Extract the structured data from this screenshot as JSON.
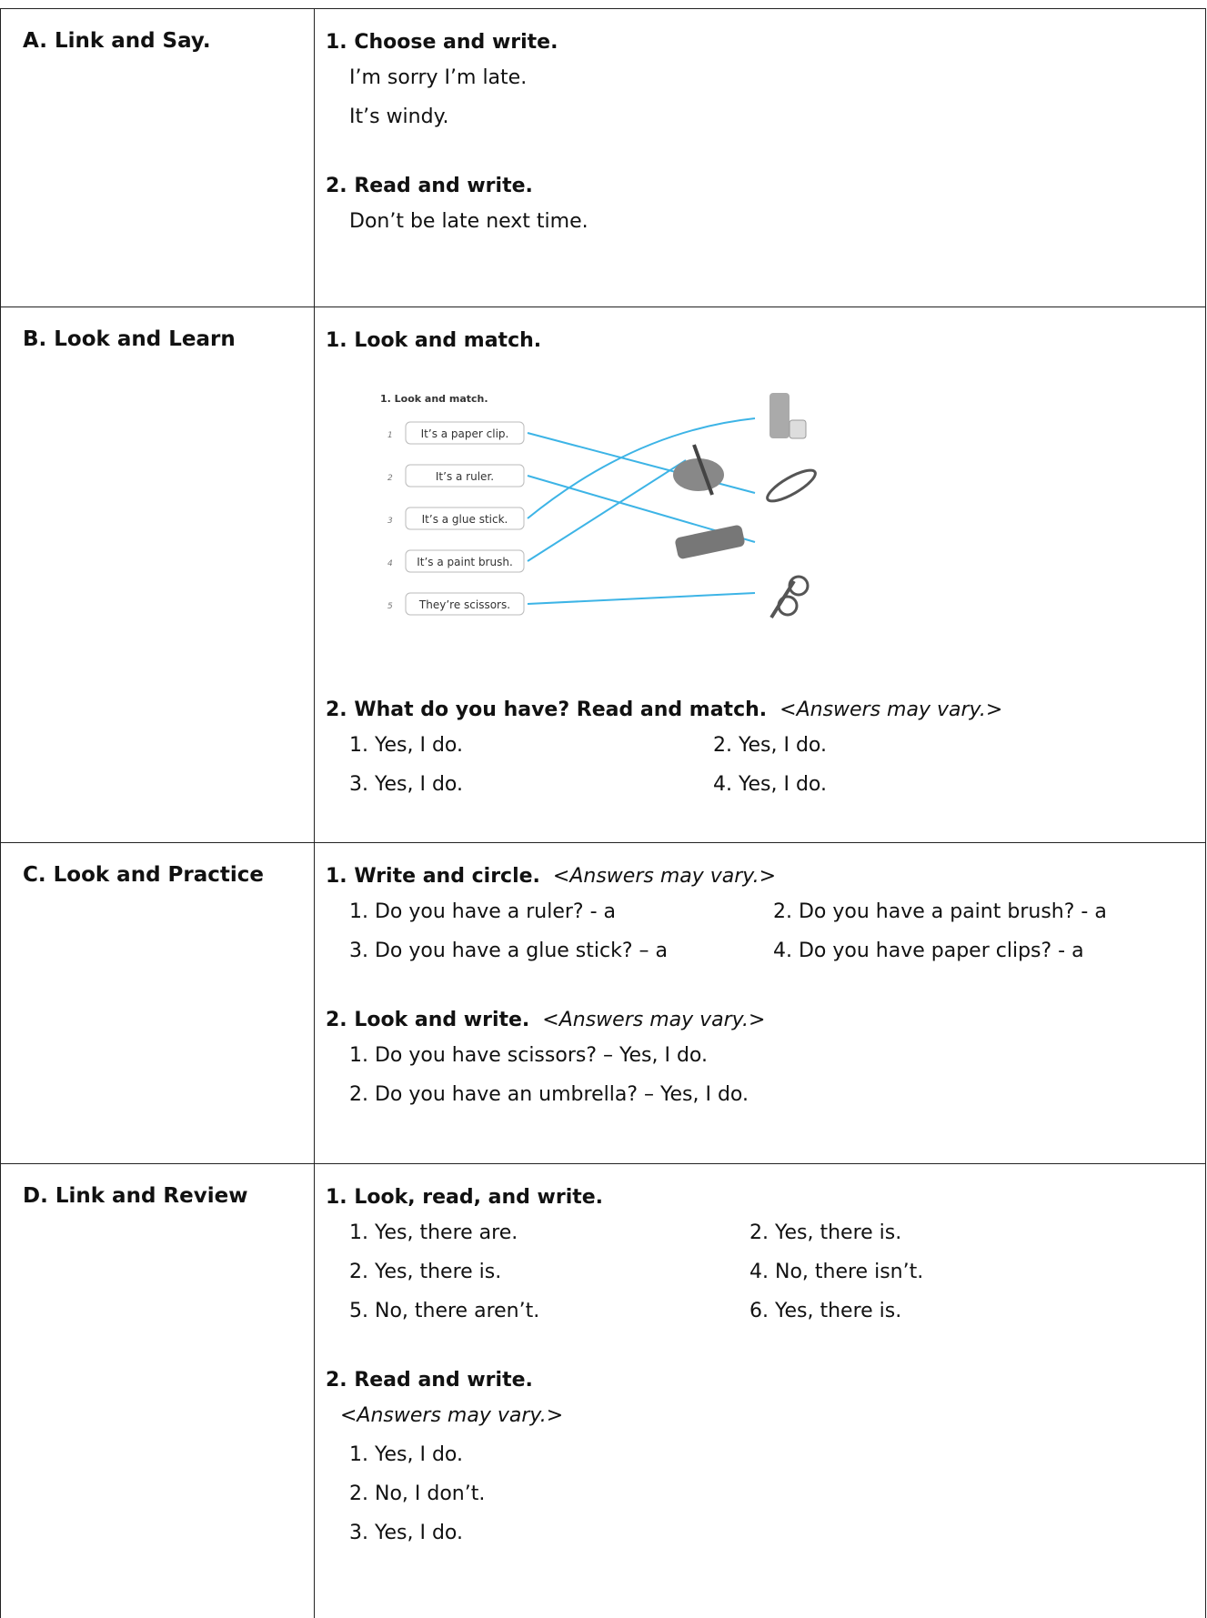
{
  "sections": [
    {
      "heading": "A. Link and Say.",
      "parts": [
        {
          "title": "1. Choose and write.",
          "lines": [
            [
              "I’m sorry I’m late."
            ],
            [
              "It’s windy."
            ]
          ]
        },
        {
          "title": "2. Read and write.",
          "lines": [
            [
              "Don’t be late next time."
            ]
          ]
        }
      ]
    },
    {
      "heading": "B. Look and Learn",
      "parts": [
        {
          "title": "1. Look and match.",
          "figure": {
            "title": "1. Look and match.",
            "items": [
              {
                "number": "1",
                "text": "It’s a paper clip."
              },
              {
                "number": "2",
                "text": "It’s a ruler."
              },
              {
                "number": "3",
                "text": "It’s a glue stick."
              },
              {
                "number": "4",
                "text": "It’s a paint brush."
              },
              {
                "number": "5",
                "text": "They’re scissors."
              }
            ]
          }
        },
        {
          "title": "2. What do you have? Read and match.",
          "note": "<Answers may vary.>",
          "lines": [
            [
              "1. Yes, I do.",
              "2. Yes, I do."
            ],
            [
              "3. Yes, I do.",
              "4. Yes, I do."
            ]
          ]
        }
      ]
    },
    {
      "heading": "C. Look and Practice",
      "parts": [
        {
          "title": "1. Write and circle.",
          "note": "<Answers may vary.>",
          "lines": [
            [
              "1. Do you have a ruler? - a",
              "2. Do you have a paint brush? - a"
            ],
            [
              "3. Do you have a glue stick? – a",
              "4. Do you have paper clips? - a"
            ]
          ]
        },
        {
          "title": "2. Look and write.",
          "note": "<Answers may vary.>",
          "lines": [
            [
              "1. Do you have scissors? – Yes, I do."
            ],
            [
              "2. Do you have an umbrella? – Yes, I do."
            ]
          ]
        }
      ]
    },
    {
      "heading": "D. Link and Review",
      "parts": [
        {
          "title": "1. Look, read, and write.",
          "lines": [
            [
              "1.   Yes, there are.",
              "2. Yes, there is."
            ],
            [
              "2.   Yes, there is.",
              "4. No, there isn’t."
            ],
            [
              "5.   No, there aren’t.",
              "6. Yes, there is."
            ]
          ]
        },
        {
          "title": "2. Read and write.",
          "note_below": "<Answers may vary.>",
          "lines": [
            [
              "1. Yes, I do."
            ],
            [
              "2. No, I don’t."
            ],
            [
              "3. Yes, I do."
            ]
          ]
        }
      ]
    }
  ]
}
